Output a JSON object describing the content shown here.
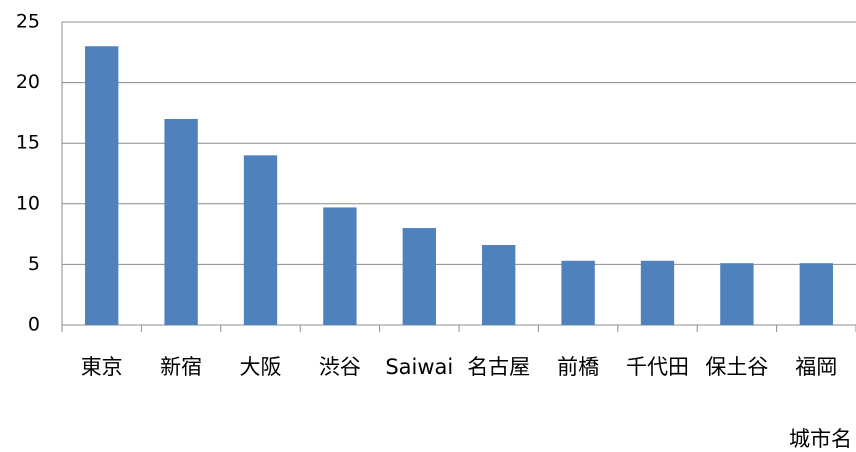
{
  "chart_data": {
    "type": "bar",
    "categories": [
      "東京",
      "新宿",
      "大阪",
      "渋谷",
      "Saiwai",
      "名古屋",
      "前橋",
      "千代田",
      "保土谷",
      "福岡"
    ],
    "values": [
      23,
      17,
      14,
      9.7,
      8,
      6.6,
      5.3,
      5.3,
      5.1,
      5.1
    ],
    "color": "#4f81bd",
    "ylim": [
      0,
      25
    ],
    "yticks": [
      0,
      5,
      10,
      15,
      20,
      25
    ],
    "grid": true,
    "x_label": "城市名"
  }
}
